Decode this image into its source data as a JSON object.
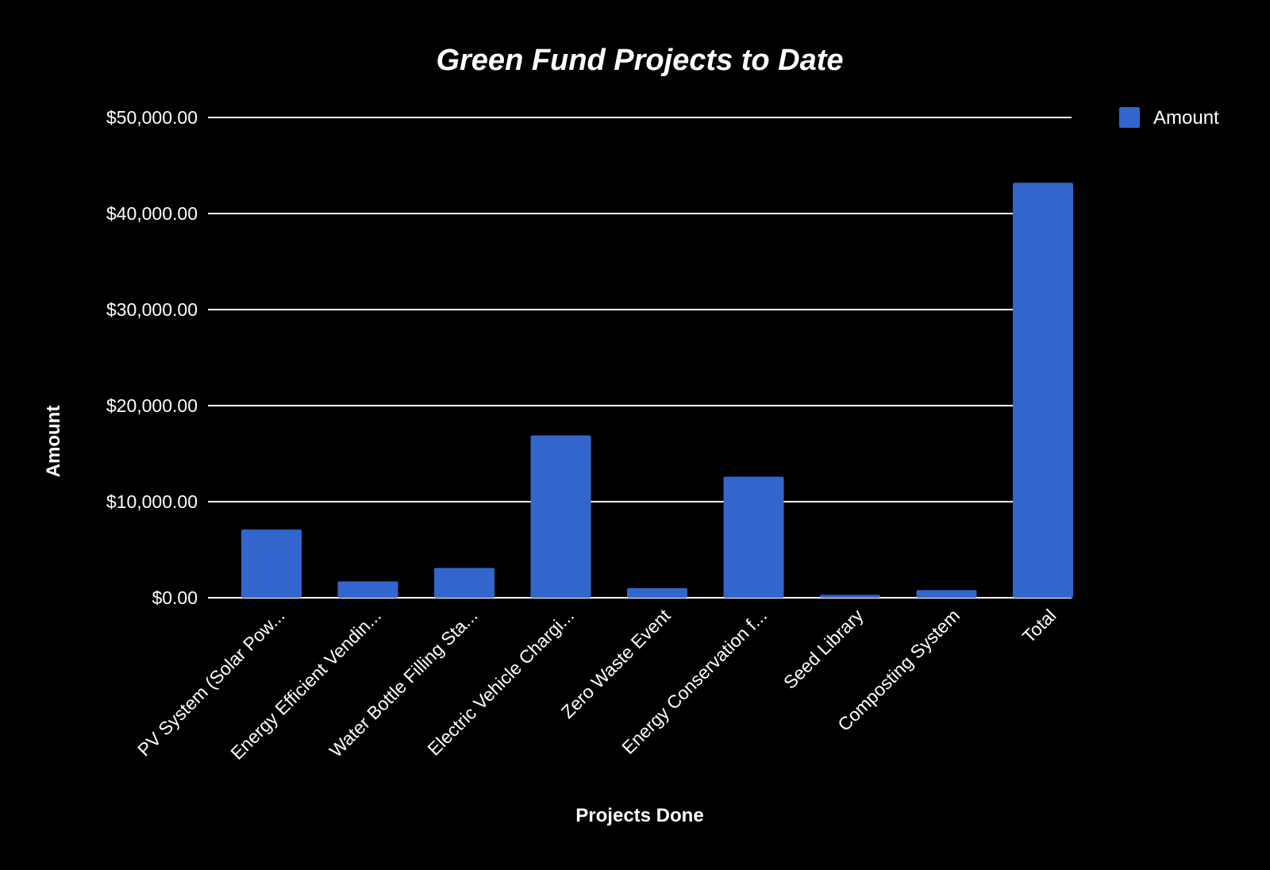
{
  "chart_data": {
    "type": "bar",
    "title": "Green Fund Projects to Date",
    "xlabel": "Projects Done",
    "ylabel": "Amount",
    "categories": [
      "PV System (Solar Pow...",
      "Energy Efficient Vendin...",
      "Water Bottle Filling Sta...",
      "Electric Vehicle Chargi...",
      "Zero Waste Event",
      "Energy Conservation f...",
      "Seed Library",
      "Composting System",
      "Total"
    ],
    "series": [
      {
        "name": "Amount",
        "color": "#3366cc",
        "values": [
          7100,
          1700,
          3100,
          16900,
          1000,
          12600,
          300,
          800,
          43200
        ]
      }
    ],
    "ylim": [
      0,
      50000
    ],
    "yticks": [
      0,
      10000,
      20000,
      30000,
      40000,
      50000
    ],
    "ytick_labels": [
      "$0.00",
      "$10,000.00",
      "$20,000.00",
      "$30,000.00",
      "$40,000.00",
      "$50,000.00"
    ],
    "grid": true,
    "legend_position": "top-right",
    "background": "#000000",
    "text_color": "#ffffff"
  }
}
